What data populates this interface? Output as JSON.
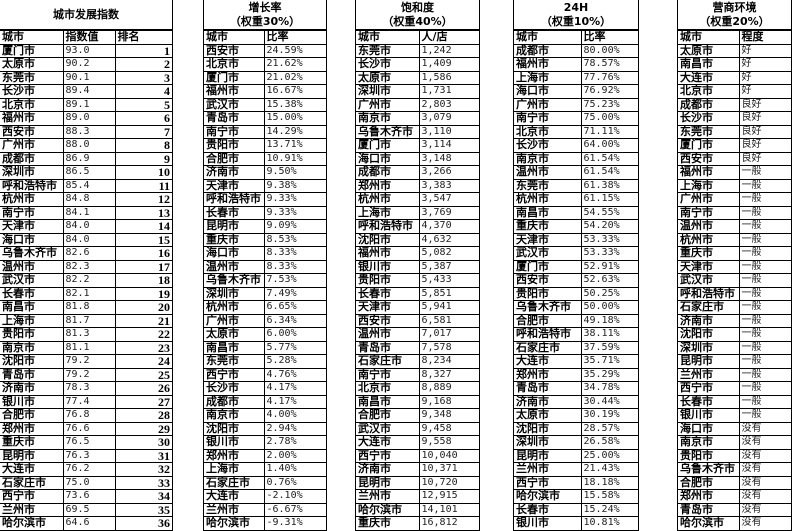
{
  "tables": [
    {
      "title": "城市发展指数",
      "subtitle": "",
      "headers": [
        "城市",
        "指数值",
        "排名"
      ],
      "rows": [
        [
          "厦门市",
          "93.0",
          "1"
        ],
        [
          "太原市",
          "90.2",
          "2"
        ],
        [
          "东莞市",
          "90.1",
          "3"
        ],
        [
          "长沙市",
          "89.4",
          "4"
        ],
        [
          "北京市",
          "89.1",
          "5"
        ],
        [
          "福州市",
          "89.0",
          "6"
        ],
        [
          "西安市",
          "88.3",
          "7"
        ],
        [
          "广州市",
          "88.0",
          "8"
        ],
        [
          "成都市",
          "86.9",
          "9"
        ],
        [
          "深圳市",
          "86.5",
          "10"
        ],
        [
          "呼和浩特市",
          "85.4",
          "11"
        ],
        [
          "杭州市",
          "84.8",
          "12"
        ],
        [
          "南宁市",
          "84.1",
          "13"
        ],
        [
          "天津市",
          "84.0",
          "14"
        ],
        [
          "海口市",
          "84.0",
          "15"
        ],
        [
          "乌鲁木齐市",
          "82.6",
          "16"
        ],
        [
          "温州市",
          "82.3",
          "17"
        ],
        [
          "武汉市",
          "82.2",
          "18"
        ],
        [
          "长春市",
          "82.1",
          "19"
        ],
        [
          "南昌市",
          "81.8",
          "20"
        ],
        [
          "上海市",
          "81.7",
          "21"
        ],
        [
          "贵阳市",
          "81.3",
          "22"
        ],
        [
          "南京市",
          "81.1",
          "23"
        ],
        [
          "沈阳市",
          "79.2",
          "24"
        ],
        [
          "青岛市",
          "79.2",
          "25"
        ],
        [
          "济南市",
          "78.3",
          "26"
        ],
        [
          "银川市",
          "77.4",
          "27"
        ],
        [
          "合肥市",
          "76.8",
          "28"
        ],
        [
          "郑州市",
          "76.6",
          "29"
        ],
        [
          "重庆市",
          "76.5",
          "30"
        ],
        [
          "昆明市",
          "76.3",
          "31"
        ],
        [
          "大连市",
          "76.2",
          "32"
        ],
        [
          "石家庄市",
          "75.0",
          "33"
        ],
        [
          "西宁市",
          "73.6",
          "34"
        ],
        [
          "兰州市",
          "69.5",
          "35"
        ],
        [
          "哈尔滨市",
          "64.6",
          "36"
        ]
      ]
    },
    {
      "title": "增长率",
      "subtitle": "（权重30%）",
      "headers": [
        "城市",
        "比率"
      ],
      "rows": [
        [
          "西安市",
          "24.59%"
        ],
        [
          "北京市",
          "21.62%"
        ],
        [
          "厦门市",
          "21.02%"
        ],
        [
          "福州市",
          "16.67%"
        ],
        [
          "武汉市",
          "15.38%"
        ],
        [
          "青岛市",
          "15.00%"
        ],
        [
          "南宁市",
          "14.29%"
        ],
        [
          "贵阳市",
          "13.71%"
        ],
        [
          "合肥市",
          "10.91%"
        ],
        [
          "济南市",
          "9.50%"
        ],
        [
          "天津市",
          "9.38%"
        ],
        [
          "呼和浩特市",
          "9.33%"
        ],
        [
          "长春市",
          "9.33%"
        ],
        [
          "昆明市",
          "9.09%"
        ],
        [
          "重庆市",
          "8.53%"
        ],
        [
          "海口市",
          "8.33%"
        ],
        [
          "温州市",
          "8.33%"
        ],
        [
          "乌鲁木齐市",
          "7.53%"
        ],
        [
          "深圳市",
          "7.49%"
        ],
        [
          "杭州市",
          "6.65%"
        ],
        [
          "广州市",
          "6.34%"
        ],
        [
          "太原市",
          "6.00%"
        ],
        [
          "南昌市",
          "5.77%"
        ],
        [
          "东莞市",
          "5.28%"
        ],
        [
          "西宁市",
          "4.76%"
        ],
        [
          "长沙市",
          "4.17%"
        ],
        [
          "成都市",
          "4.17%"
        ],
        [
          "南京市",
          "4.00%"
        ],
        [
          "沈阳市",
          "2.94%"
        ],
        [
          "银川市",
          "2.78%"
        ],
        [
          "郑州市",
          "2.00%"
        ],
        [
          "上海市",
          "1.40%"
        ],
        [
          "石家庄市",
          "0.76%"
        ],
        [
          "大连市",
          "-2.10%"
        ],
        [
          "兰州市",
          "-6.67%"
        ],
        [
          "哈尔滨市",
          "-9.31%"
        ]
      ]
    },
    {
      "title": "饱和度",
      "subtitle": "（权重40%）",
      "headers": [
        "城市",
        "人/店"
      ],
      "rows": [
        [
          "东莞市",
          "1,242"
        ],
        [
          "长沙市",
          "1,409"
        ],
        [
          "太原市",
          "1,586"
        ],
        [
          "深圳市",
          "1,731"
        ],
        [
          "广州市",
          "2,803"
        ],
        [
          "南京市",
          "3,079"
        ],
        [
          "乌鲁木齐市",
          "3,110"
        ],
        [
          "厦门市",
          "3,114"
        ],
        [
          "海口市",
          "3,148"
        ],
        [
          "成都市",
          "3,266"
        ],
        [
          "郑州市",
          "3,383"
        ],
        [
          "杭州市",
          "3,547"
        ],
        [
          "上海市",
          "3,769"
        ],
        [
          "呼和浩特市",
          "4,370"
        ],
        [
          "沈阳市",
          "4,632"
        ],
        [
          "福州市",
          "5,082"
        ],
        [
          "银川市",
          "5,387"
        ],
        [
          "贵阳市",
          "5,433"
        ],
        [
          "长春市",
          "5,851"
        ],
        [
          "天津市",
          "5,941"
        ],
        [
          "西安市",
          "6,581"
        ],
        [
          "温州市",
          "7,017"
        ],
        [
          "青岛市",
          "7,578"
        ],
        [
          "石家庄市",
          "8,234"
        ],
        [
          "南宁市",
          "8,327"
        ],
        [
          "北京市",
          "8,889"
        ],
        [
          "南昌市",
          "9,168"
        ],
        [
          "合肥市",
          "9,348"
        ],
        [
          "武汉市",
          "9,458"
        ],
        [
          "大连市",
          "9,558"
        ],
        [
          "西宁市",
          "10,040"
        ],
        [
          "济南市",
          "10,371"
        ],
        [
          "昆明市",
          "10,720"
        ],
        [
          "兰州市",
          "12,915"
        ],
        [
          "哈尔滨市",
          "14,101"
        ],
        [
          "重庆市",
          "16,812"
        ]
      ]
    },
    {
      "title": "24H",
      "subtitle": "（权重10%）",
      "headers": [
        "城市",
        "比率"
      ],
      "rows": [
        [
          "成都市",
          "80.00%"
        ],
        [
          "福州市",
          "78.57%"
        ],
        [
          "上海市",
          "77.76%"
        ],
        [
          "海口市",
          "76.92%"
        ],
        [
          "广州市",
          "75.23%"
        ],
        [
          "南宁市",
          "75.00%"
        ],
        [
          "北京市",
          "71.11%"
        ],
        [
          "长沙市",
          "64.00%"
        ],
        [
          "南京市",
          "61.54%"
        ],
        [
          "温州市",
          "61.54%"
        ],
        [
          "东莞市",
          "61.38%"
        ],
        [
          "杭州市",
          "61.15%"
        ],
        [
          "南昌市",
          "54.55%"
        ],
        [
          "重庆市",
          "54.20%"
        ],
        [
          "天津市",
          "53.33%"
        ],
        [
          "武汉市",
          "53.33%"
        ],
        [
          "厦门市",
          "52.91%"
        ],
        [
          "西安市",
          "52.63%"
        ],
        [
          "贵阳市",
          "50.25%"
        ],
        [
          "乌鲁木齐市",
          "50.00%"
        ],
        [
          "合肥市",
          "49.18%"
        ],
        [
          "呼和浩特市",
          "38.11%"
        ],
        [
          "石家庄市",
          "37.59%"
        ],
        [
          "大连市",
          "35.71%"
        ],
        [
          "郑州市",
          "35.29%"
        ],
        [
          "青岛市",
          "34.78%"
        ],
        [
          "济南市",
          "30.44%"
        ],
        [
          "太原市",
          "30.19%"
        ],
        [
          "沈阳市",
          "28.57%"
        ],
        [
          "深圳市",
          "26.58%"
        ],
        [
          "昆明市",
          "25.00%"
        ],
        [
          "兰州市",
          "21.43%"
        ],
        [
          "西宁市",
          "18.18%"
        ],
        [
          "哈尔滨市",
          "15.58%"
        ],
        [
          "长春市",
          "15.24%"
        ],
        [
          "银川市",
          "10.81%"
        ]
      ]
    },
    {
      "title": "营商环境",
      "subtitle": "（权重20%）",
      "headers": [
        "城市",
        "程度"
      ],
      "rows": [
        [
          "太原市",
          "好"
        ],
        [
          "南昌市",
          "好"
        ],
        [
          "大连市",
          "好"
        ],
        [
          "北京市",
          "好"
        ],
        [
          "成都市",
          "良好"
        ],
        [
          "长沙市",
          "良好"
        ],
        [
          "东莞市",
          "良好"
        ],
        [
          "厦门市",
          "良好"
        ],
        [
          "西安市",
          "良好"
        ],
        [
          "福州市",
          "一般"
        ],
        [
          "上海市",
          "一般"
        ],
        [
          "广州市",
          "一般"
        ],
        [
          "南宁市",
          "一般"
        ],
        [
          "温州市",
          "一般"
        ],
        [
          "杭州市",
          "一般"
        ],
        [
          "重庆市",
          "一般"
        ],
        [
          "天津市",
          "一般"
        ],
        [
          "武汉市",
          "一般"
        ],
        [
          "呼和浩特市",
          "一般"
        ],
        [
          "石家庄市",
          "一般"
        ],
        [
          "济南市",
          "一般"
        ],
        [
          "沈阳市",
          "一般"
        ],
        [
          "深圳市",
          "一般"
        ],
        [
          "昆明市",
          "一般"
        ],
        [
          "兰州市",
          "一般"
        ],
        [
          "西宁市",
          "一般"
        ],
        [
          "长春市",
          "一般"
        ],
        [
          "银川市",
          "一般"
        ],
        [
          "海口市",
          "没有"
        ],
        [
          "南京市",
          "没有"
        ],
        [
          "贵阳市",
          "没有"
        ],
        [
          "乌鲁木齐市",
          "没有"
        ],
        [
          "合肥市",
          "没有"
        ],
        [
          "郑州市",
          "没有"
        ],
        [
          "青岛市",
          "没有"
        ],
        [
          "哈尔滨市",
          "没有"
        ]
      ]
    }
  ]
}
